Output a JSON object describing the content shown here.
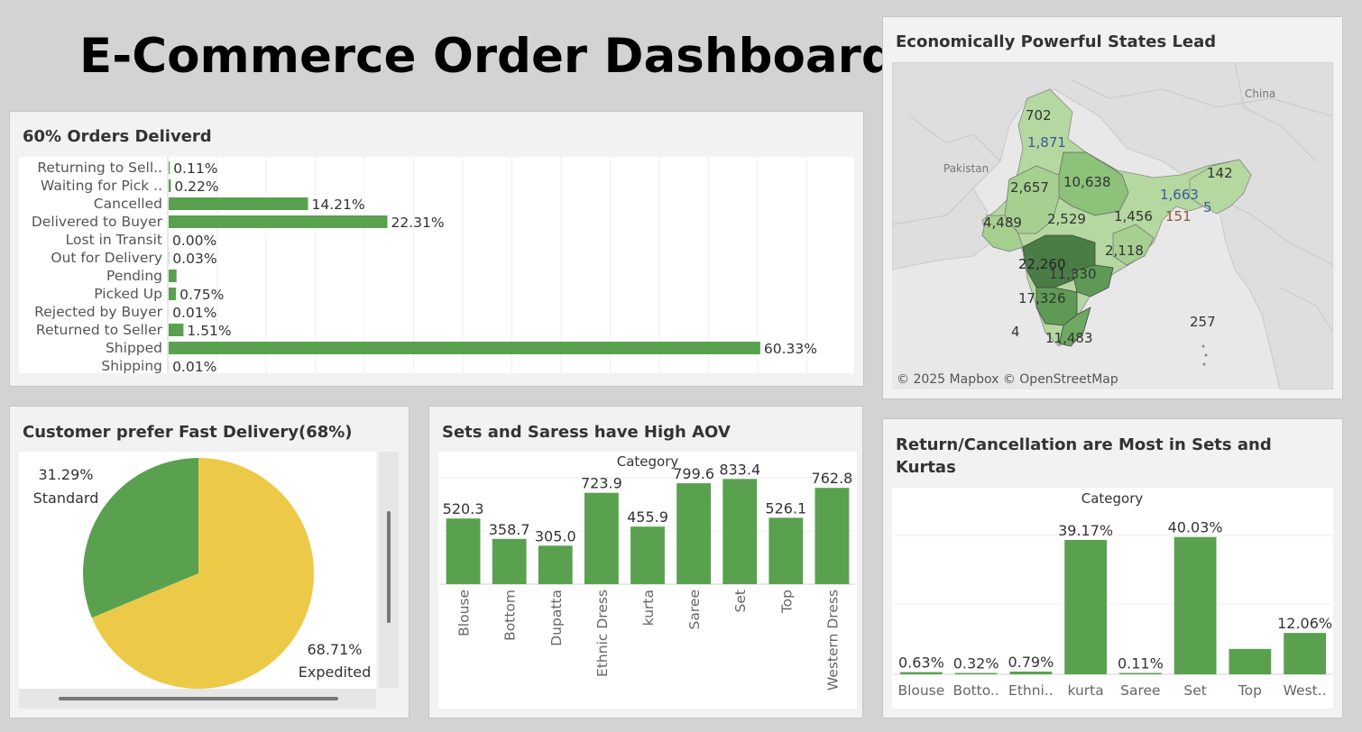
{
  "dashboard": {
    "title": "E-Commerce Order Dashboard"
  },
  "status_panel": {
    "title": "60%  Orders Deliverd"
  },
  "map_panel": {
    "title": "Economically Powerful States Lead",
    "country_labels": [
      "Pakistan",
      "China"
    ],
    "attribution": "© 2025 Mapbox © OpenStreetMap",
    "values": [
      "702",
      "1,871",
      "142",
      "2,657",
      "10,638",
      "1,663",
      "151",
      "5",
      "4,489",
      "2,529",
      "1,456",
      "2,118",
      "22,260",
      "11,330",
      "17,326",
      "257",
      "4",
      "11,483"
    ],
    "colors": {
      "ocean": "#e8e8e8",
      "land": "#dcdcdc",
      "light": "#b5d8a0",
      "medium": "#8cc27a",
      "dark": "#5e9a56",
      "darkest": "#4a7d46"
    }
  },
  "pie_panel": {
    "title": "Customer prefer Fast Delivery(68%)"
  },
  "aov_panel": {
    "title": "Sets and Saress have High AOV",
    "header": "Category"
  },
  "return_panel": {
    "title": "Return/Cancellation are Most in Sets and Kurtas",
    "header": "Category"
  },
  "colors": {
    "bar": "#59a14f",
    "pie_standard": "#59a14f",
    "pie_expedited": "#edc948"
  },
  "chart_data": [
    {
      "id": "order_status",
      "type": "bar",
      "orientation": "horizontal",
      "title": "60%  Orders Deliverd",
      "categories": [
        "Returning to Sell..",
        "Waiting for Pick ..",
        "Cancelled",
        "Delivered to Buyer",
        "Lost in Transit",
        "Out for Delivery",
        "Pending",
        "Picked Up",
        "Rejected by Buyer",
        "Returned to Seller",
        "Shipped",
        "Shipping"
      ],
      "values": [
        0.11,
        0.22,
        14.21,
        22.31,
        0.0,
        0.03,
        0.8,
        0.75,
        0.01,
        1.51,
        60.33,
        0.01
      ],
      "labels": [
        "0.11%",
        "0.22%",
        "14.21%",
        "22.31%",
        "0.00%",
        "0.03%",
        "",
        "0.75%",
        "0.01%",
        "1.51%",
        "60.33%",
        "0.01%"
      ],
      "xlim": [
        0,
        70
      ]
    },
    {
      "id": "delivery_type",
      "type": "pie",
      "title": "Customer prefer Fast Delivery(68%)",
      "slices": [
        {
          "name": "Expedited",
          "value": 68.71,
          "label": "68.71%"
        },
        {
          "name": "Standard",
          "value": 31.29,
          "label": "31.29%"
        }
      ]
    },
    {
      "id": "aov",
      "type": "bar",
      "title": "Sets and Saress have High AOV",
      "xlabel": "Category",
      "categories": [
        "Blouse",
        "Bottom",
        "Dupatta",
        "Ethnic Dress",
        "kurta",
        "Saree",
        "Set",
        "Top",
        "Western Dress"
      ],
      "values": [
        520.3,
        358.7,
        305.0,
        723.9,
        455.9,
        799.6,
        833.4,
        526.1,
        762.8
      ],
      "labels": [
        "520.3",
        "358.7",
        "305.0",
        "723.9",
        "455.9",
        "799.6",
        "833.4",
        "526.1",
        "762.8"
      ],
      "ylim": [
        0,
        900
      ]
    },
    {
      "id": "return_cancel",
      "type": "bar",
      "title": "Return/Cancellation are Most in Sets and Kurtas",
      "xlabel": "Category",
      "categories": [
        "Blouse",
        "Botto..",
        "Ethni..",
        "kurta",
        "Saree",
        "Set",
        "Top",
        "West.."
      ],
      "values": [
        0.63,
        0.32,
        0.79,
        39.17,
        0.11,
        40.03,
        7.4,
        12.06
      ],
      "labels": [
        "0.63%",
        "0.32%",
        "0.79%",
        "39.17%",
        "0.11%",
        "40.03%",
        "",
        "12.06%"
      ],
      "ylim": [
        0,
        41
      ]
    }
  ]
}
